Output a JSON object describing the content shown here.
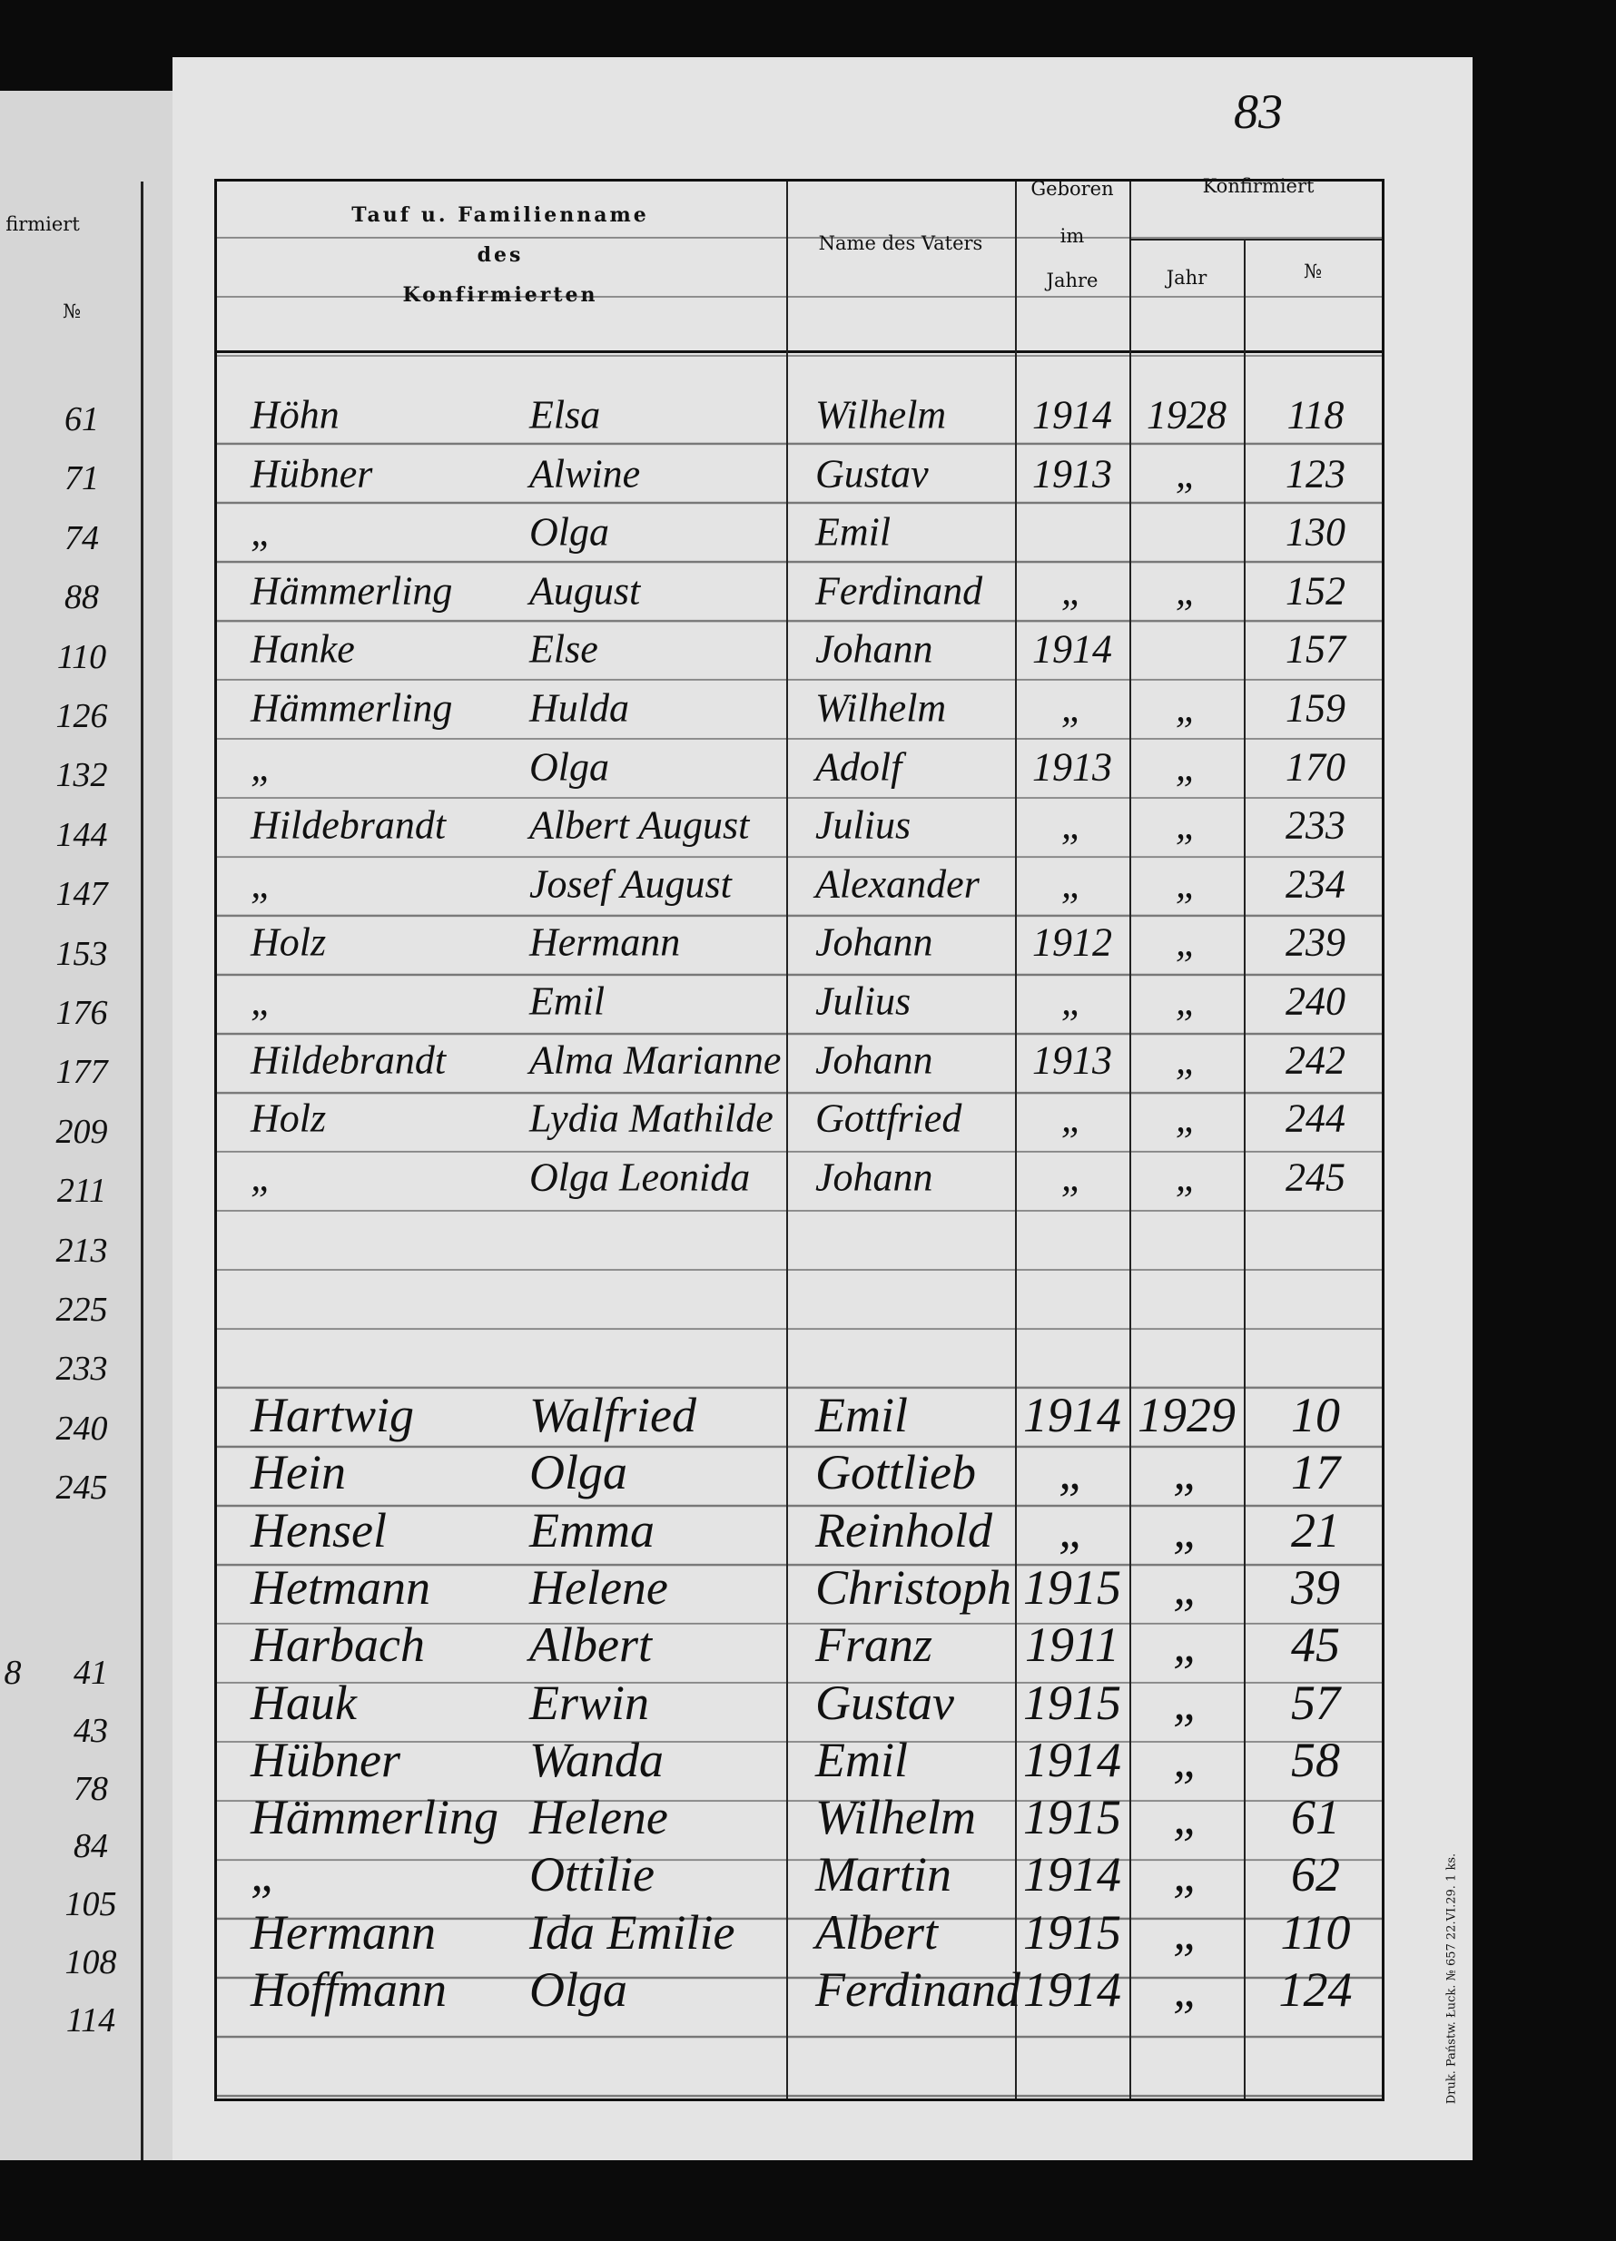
{
  "page_number": "83",
  "left_page": {
    "header": "firmiert",
    "number_header": "№",
    "partial": "8",
    "numbers": [
      "61",
      "71",
      "74",
      "88",
      "110",
      "126",
      "132",
      "144",
      "147",
      "153",
      "176",
      "177",
      "209",
      "211",
      "213",
      "225",
      "233",
      "240",
      "245"
    ],
    "numbers_2": [
      "41",
      "43",
      "78",
      "84",
      "105",
      "108",
      "114"
    ]
  },
  "header": {
    "name": [
      "Tauf u. Familienname",
      "des",
      "Konfirmierten"
    ],
    "father": "Name des Vaters",
    "born": [
      "Geboren",
      "im",
      "Jahre"
    ],
    "confirmed": "Konfirmiert",
    "year": "Jahr",
    "number": "№"
  },
  "groups": [
    {
      "rows": [
        [
          "Höhn",
          "Elsa",
          "Wilhelm",
          "1914",
          "1928",
          "118"
        ],
        [
          "Hübner",
          "Alwine",
          "Gustav",
          "1913",
          "„",
          "123"
        ],
        [
          "„",
          "Olga",
          "Emil",
          null,
          null,
          "130"
        ],
        [
          "Hämmerling",
          "August",
          "Ferdinand",
          "„",
          "„",
          "152"
        ],
        [
          "Hanke",
          "Else",
          "Johann",
          "1914",
          null,
          "157"
        ],
        [
          "Hämmerling",
          "Hulda",
          "Wilhelm",
          "„",
          "„",
          "159"
        ],
        [
          "„",
          "Olga",
          "Adolf",
          "1913",
          "„",
          "170"
        ],
        [
          "Hildebrandt",
          "Albert August",
          "Julius",
          "„",
          "„",
          "233"
        ],
        [
          "„",
          "Josef August",
          "Alexander",
          "„",
          "„",
          "234"
        ],
        [
          "Holz",
          "Hermann",
          "Johann",
          "1912",
          "„",
          "239"
        ],
        [
          "„",
          "Emil",
          "Julius",
          "„",
          "„",
          "240"
        ],
        [
          "Hildebrandt",
          "Alma Marianne",
          "Johann",
          "1913",
          "„",
          "242"
        ],
        [
          "Holz",
          "Lydia Mathilde",
          "Gottfried",
          "„",
          "„",
          "244"
        ],
        [
          "„",
          "Olga Leonida",
          "Johann",
          "„",
          "„",
          "245"
        ]
      ]
    },
    {
      "rows": [
        [
          "Hartwig",
          "Walfried",
          "Emil",
          "1914",
          "1929",
          "10"
        ],
        [
          "Hein",
          "Olga",
          "Gottlieb",
          "„",
          "„",
          "17"
        ],
        [
          "Hensel",
          "Emma",
          "Reinhold",
          "„",
          "„",
          "21"
        ],
        [
          "Hetmann",
          "Helene",
          "Christoph",
          "1915",
          "„",
          "39"
        ],
        [
          "Harbach",
          "Albert",
          "Franz",
          "1911",
          "„",
          "45"
        ],
        [
          "Hauk",
          "Erwin",
          "Gustav",
          "1915",
          "„",
          "57"
        ],
        [
          "Hübner",
          "Wanda",
          "Emil",
          "1914",
          "„",
          "58"
        ],
        [
          "Hämmerling",
          "Helene",
          "Wilhelm",
          "1915",
          "„",
          "61"
        ],
        [
          "„",
          "Ottilie",
          "Martin",
          "1914",
          "„",
          "62"
        ],
        [
          "Hermann",
          "Ida Emilie",
          "Albert",
          "1915",
          "„",
          "110"
        ],
        [
          "Hoffmann",
          "Olga",
          "Ferdinand",
          "1914",
          "„",
          "124"
        ]
      ]
    }
  ],
  "printer": "Druk. Państw. Łuck. № 657 22.VI.29. 1 ks."
}
